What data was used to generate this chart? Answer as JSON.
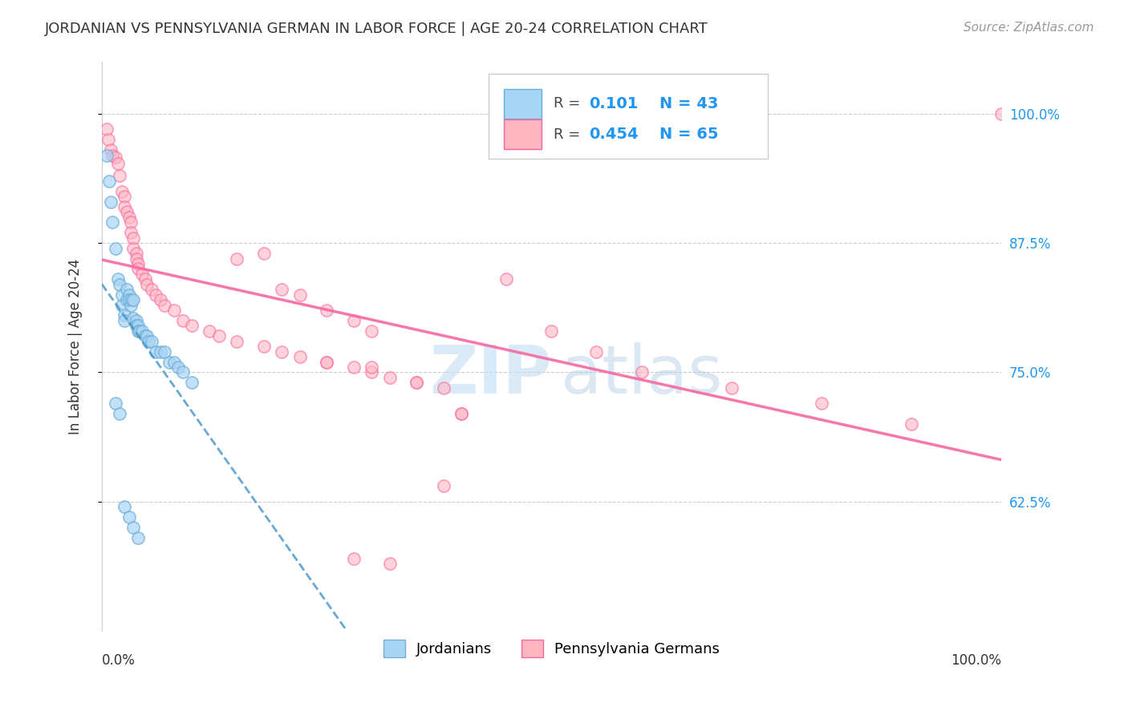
{
  "title": "JORDANIAN VS PENNSYLVANIA GERMAN IN LABOR FORCE | AGE 20-24 CORRELATION CHART",
  "source": "Source: ZipAtlas.com",
  "ylabel": "In Labor Force | Age 20-24",
  "xlim": [
    0.0,
    1.0
  ],
  "ylim": [
    0.5,
    1.05
  ],
  "blue_scatter_face": "#a8d4f5",
  "blue_scatter_edge": "#6baed6",
  "pink_scatter_face": "#ffb6c1",
  "pink_scatter_edge": "#f768a1",
  "blue_line_color": "#4292c6",
  "pink_line_color": "#f768a1",
  "legend_r_blue": "0.101",
  "legend_n_blue": "43",
  "legend_r_pink": "0.454",
  "legend_n_pink": "65",
  "ytick_vals": [
    0.625,
    0.75,
    0.875,
    1.0
  ],
  "ytick_labels": [
    "62.5%",
    "75.0%",
    "87.5%",
    "100.0%"
  ],
  "right_tick_color": "#2196F3",
  "grid_color": "#cccccc",
  "watermark_zip": "ZIP",
  "watermark_atlas": "atlas",
  "jordanians_x": [
    0.005,
    0.008,
    0.01,
    0.012,
    0.015,
    0.018,
    0.02,
    0.022,
    0.022,
    0.025,
    0.025,
    0.028,
    0.028,
    0.03,
    0.03,
    0.032,
    0.033,
    0.035,
    0.035,
    0.038,
    0.038,
    0.04,
    0.04,
    0.042,
    0.045,
    0.048,
    0.05,
    0.052,
    0.055,
    0.06,
    0.065,
    0.07,
    0.075,
    0.08,
    0.085,
    0.09,
    0.1,
    0.015,
    0.02,
    0.025,
    0.03,
    0.035,
    0.04
  ],
  "jordanians_y": [
    0.96,
    0.935,
    0.915,
    0.895,
    0.87,
    0.84,
    0.835,
    0.825,
    0.815,
    0.805,
    0.8,
    0.83,
    0.82,
    0.825,
    0.82,
    0.815,
    0.82,
    0.82,
    0.802,
    0.8,
    0.795,
    0.795,
    0.79,
    0.79,
    0.79,
    0.785,
    0.785,
    0.78,
    0.78,
    0.77,
    0.77,
    0.77,
    0.76,
    0.76,
    0.755,
    0.75,
    0.74,
    0.72,
    0.71,
    0.62,
    0.61,
    0.6,
    0.59
  ],
  "pa_german_x": [
    0.005,
    0.007,
    0.01,
    0.012,
    0.015,
    0.018,
    0.02,
    0.022,
    0.025,
    0.025,
    0.028,
    0.03,
    0.032,
    0.032,
    0.035,
    0.035,
    0.038,
    0.038,
    0.04,
    0.04,
    0.045,
    0.048,
    0.05,
    0.055,
    0.06,
    0.065,
    0.07,
    0.08,
    0.09,
    0.1,
    0.12,
    0.13,
    0.15,
    0.18,
    0.2,
    0.22,
    0.25,
    0.28,
    0.3,
    0.32,
    0.35,
    0.38,
    0.4,
    0.45,
    0.5,
    0.55,
    0.6,
    0.7,
    0.8,
    0.9,
    1.0,
    0.25,
    0.28,
    0.3,
    0.2,
    0.22,
    0.18,
    0.15,
    0.25,
    0.3,
    0.35,
    0.4,
    0.28,
    0.32,
    0.38
  ],
  "pa_german_y": [
    0.985,
    0.975,
    0.965,
    0.96,
    0.958,
    0.952,
    0.94,
    0.925,
    0.92,
    0.91,
    0.905,
    0.9,
    0.895,
    0.885,
    0.88,
    0.87,
    0.865,
    0.86,
    0.855,
    0.85,
    0.845,
    0.84,
    0.835,
    0.83,
    0.825,
    0.82,
    0.815,
    0.81,
    0.8,
    0.795,
    0.79,
    0.785,
    0.78,
    0.775,
    0.77,
    0.765,
    0.76,
    0.755,
    0.75,
    0.745,
    0.74,
    0.735,
    0.71,
    0.84,
    0.79,
    0.77,
    0.75,
    0.735,
    0.72,
    0.7,
    1.0,
    0.81,
    0.8,
    0.79,
    0.83,
    0.825,
    0.865,
    0.86,
    0.76,
    0.755,
    0.74,
    0.71,
    0.57,
    0.565,
    0.64
  ]
}
